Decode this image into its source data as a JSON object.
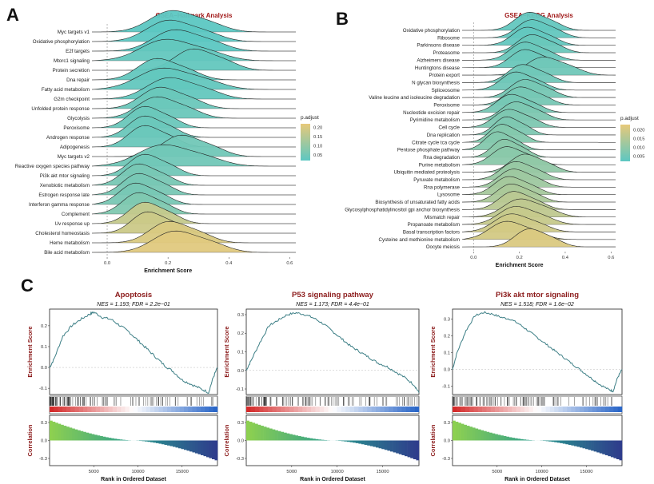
{
  "panels": {
    "A": "A",
    "B": "B",
    "C": "C"
  },
  "colors": {
    "low_padj": "#5cc7c2",
    "high_padj": "#e7c97a",
    "title_red": "#a01818",
    "curve": "#3d7f86"
  },
  "chart_data": [
    {
      "type": "ridgeline",
      "title": "GSEA−Hallmark Analysis",
      "xlabel": "Enrichment Score",
      "xlim": [
        -0.05,
        0.62
      ],
      "xticks": [
        "0.0",
        "0.2",
        "0.4",
        "0.6"
      ],
      "xtick_values": [
        0.0,
        0.2,
        0.4,
        0.6
      ],
      "legend": {
        "title": "p.adjust",
        "labels": [
          "0.20",
          "0.15",
          "0.10",
          "0.05"
        ],
        "values": [
          0.2,
          0.15,
          0.1,
          0.05
        ],
        "range": [
          0.02,
          0.22
        ]
      },
      "categories": [
        "Myc targets v1",
        "Oxidative phosphorylation",
        "E2f targets",
        "Mtorc1 signaling",
        "Protein secretion",
        "Dna repair",
        "Fatty acid metabolism",
        "G2m checkpoint",
        "Unfolded protein response",
        "Glycolysis",
        "Peroxisome",
        "Androgen response",
        "Adipogenesis",
        "Myc targets v2",
        "Reactive oxygen species pathway",
        "Pi3k akt mtor signaling",
        "Xenobiotic metabolism",
        "Estrogen response late",
        "Interferon gamma response",
        "Complement",
        "Uv response up",
        "Cholesterol homeostasis",
        "Heme metabolism",
        "Bile acid metabolism"
      ],
      "peaks": [
        0.21,
        0.2,
        0.22,
        0.19,
        0.28,
        0.16,
        0.18,
        0.2,
        0.17,
        0.16,
        0.12,
        0.12,
        0.12,
        0.24,
        0.18,
        0.12,
        0.1,
        0.1,
        0.09,
        0.1,
        0.12,
        0.13,
        0.2,
        0.22
      ],
      "spreads": [
        0.07,
        0.07,
        0.07,
        0.08,
        0.06,
        0.06,
        0.08,
        0.07,
        0.06,
        0.06,
        0.05,
        0.05,
        0.05,
        0.06,
        0.08,
        0.05,
        0.05,
        0.05,
        0.05,
        0.05,
        0.05,
        0.05,
        0.06,
        0.07
      ],
      "p_adjust": [
        0.02,
        0.02,
        0.02,
        0.03,
        0.03,
        0.03,
        0.03,
        0.03,
        0.04,
        0.04,
        0.04,
        0.04,
        0.04,
        0.05,
        0.05,
        0.05,
        0.06,
        0.06,
        0.06,
        0.07,
        0.17,
        0.18,
        0.2,
        0.21
      ]
    },
    {
      "type": "ridgeline",
      "title": "GSEA−KEGG Analysis",
      "xlabel": "Enrichment Score",
      "xlim": [
        -0.05,
        0.62
      ],
      "xticks": [
        "0.0",
        "0.2",
        "0.4",
        "0.6"
      ],
      "xtick_values": [
        0.0,
        0.2,
        0.4,
        0.6
      ],
      "legend": {
        "title": "p.adjust",
        "labels": [
          "0.020",
          "0.015",
          "0.010",
          "0.005"
        ],
        "values": [
          0.02,
          0.015,
          0.01,
          0.005
        ],
        "range": [
          0.002,
          0.023
        ]
      },
      "categories": [
        "Oxidative phosphorylation",
        "Ribosome",
        "Parkinsons disease",
        "Proteasome",
        "Alzheimers disease",
        "Huntingtons disease",
        "Protein export",
        "N glycan biosynthesis",
        "Spliceosome",
        "Valine leucine and isoleucine degradation",
        "Peroxisome",
        "Nucleotide excision repair",
        "Pyrimidine metabolism",
        "Cell cycle",
        "Dna replication",
        "Citrate cycle tca cycle",
        "Pentose phosphate pathway",
        "Rna degradation",
        "Purine metabolism",
        "Ubiquitin mediated proteolysis",
        "Pyruvate metabolism",
        "Rna polymerase",
        "Lysosome",
        "Biosynthesis of unsaturated fatty acids",
        "Glycosylphosphatidylinositol gpi anchor biosynthesis",
        "Mismatch repair",
        "Propanoate metabolism",
        "Basal transcription factors",
        "Cysteine and methionine metabolism",
        "Oocyte meiosis"
      ],
      "peaks": [
        0.24,
        0.25,
        0.23,
        0.25,
        0.22,
        0.22,
        0.3,
        0.21,
        0.18,
        0.22,
        0.2,
        0.16,
        0.18,
        0.15,
        0.14,
        0.12,
        0.1,
        0.13,
        0.14,
        0.22,
        0.18,
        0.17,
        0.15,
        0.16,
        0.17,
        0.2,
        0.18,
        0.16,
        0.14,
        0.24
      ],
      "spreads": [
        0.06,
        0.06,
        0.06,
        0.06,
        0.06,
        0.06,
        0.07,
        0.06,
        0.06,
        0.06,
        0.06,
        0.06,
        0.06,
        0.06,
        0.05,
        0.05,
        0.05,
        0.05,
        0.06,
        0.06,
        0.06,
        0.06,
        0.06,
        0.06,
        0.06,
        0.07,
        0.07,
        0.07,
        0.07,
        0.06
      ],
      "p_adjust": [
        0.003,
        0.003,
        0.003,
        0.004,
        0.004,
        0.004,
        0.005,
        0.005,
        0.005,
        0.006,
        0.006,
        0.006,
        0.007,
        0.007,
        0.007,
        0.008,
        0.008,
        0.009,
        0.009,
        0.01,
        0.011,
        0.012,
        0.013,
        0.014,
        0.016,
        0.017,
        0.018,
        0.019,
        0.02,
        0.021
      ]
    },
    {
      "type": "line",
      "title": "Apoptosis",
      "subtitle": "NES = 1.193; FDR = 2.2e−01",
      "ylabel": "Enrichment Score",
      "ylabel2": "Correlation",
      "xlabel": "Rank in Ordered Dataset",
      "xlim": [
        0,
        19000
      ],
      "xticks": [
        "5000",
        "10000",
        "15000"
      ],
      "xtick_values": [
        5000,
        10000,
        15000
      ],
      "ylim": [
        -0.13,
        0.28
      ],
      "yticks": [
        "0.2",
        "0.1",
        "0.0",
        "-0.1"
      ],
      "ytick_values": [
        0.2,
        0.1,
        0.0,
        -0.1
      ],
      "corr_ylim": [
        -0.42,
        0.42
      ],
      "corr_yticks": [
        "0.3",
        "0.0",
        "-0.3"
      ],
      "corr_ytick_values": [
        0.3,
        0.0,
        -0.3
      ],
      "x": [
        0,
        500,
        1500,
        2500,
        3500,
        4500,
        5000,
        6000,
        7000,
        8000,
        9000,
        10000,
        11000,
        12000,
        13000,
        14000,
        15000,
        16000,
        17000,
        18000,
        18500,
        19000
      ],
      "y": [
        0.0,
        0.04,
        0.15,
        0.2,
        0.23,
        0.255,
        0.265,
        0.24,
        0.23,
        0.2,
        0.17,
        0.13,
        0.09,
        0.05,
        0.01,
        -0.02,
        -0.06,
        -0.08,
        -0.1,
        -0.12,
        -0.05,
        0.0
      ]
    },
    {
      "type": "line",
      "title": "P53 signaling pathway",
      "subtitle": "NES = 1.173; FDR = 4.4e−01",
      "ylabel": "Enrichment Score",
      "ylabel2": "Correlation",
      "xlabel": "Rank in Ordered Dataset",
      "xlim": [
        0,
        19000
      ],
      "xticks": [
        "5000",
        "10000",
        "15000"
      ],
      "xtick_values": [
        5000,
        10000,
        15000
      ],
      "ylim": [
        -0.13,
        0.33
      ],
      "yticks": [
        "0.3",
        "0.2",
        "0.1",
        "0.0",
        "-0.1"
      ],
      "ytick_values": [
        0.3,
        0.2,
        0.1,
        0.0,
        -0.1
      ],
      "corr_ylim": [
        -0.42,
        0.42
      ],
      "corr_yticks": [
        "0.3",
        "0.0",
        "-0.3"
      ],
      "corr_ytick_values": [
        0.3,
        0.0,
        -0.3
      ],
      "x": [
        0,
        500,
        1500,
        2500,
        3500,
        4500,
        5500,
        6500,
        7500,
        8500,
        9500,
        10500,
        11500,
        12500,
        13500,
        14500,
        15500,
        16500,
        17500,
        18500,
        19000
      ],
      "y": [
        0.0,
        0.05,
        0.15,
        0.24,
        0.27,
        0.3,
        0.31,
        0.3,
        0.28,
        0.25,
        0.21,
        0.17,
        0.13,
        0.1,
        0.07,
        0.04,
        0.02,
        -0.01,
        -0.04,
        -0.08,
        -0.12
      ]
    },
    {
      "type": "line",
      "title": "Pi3k akt mtor signaling",
      "subtitle": "NES = 1.518; FDR = 1.6e−02",
      "ylabel": "Enrichment Score",
      "ylabel2": "Correlation",
      "xlabel": "Rank in Ordered Dataset",
      "xlim": [
        0,
        19000
      ],
      "xticks": [
        "5000",
        "10000",
        "15000"
      ],
      "xtick_values": [
        5000,
        10000,
        15000
      ],
      "ylim": [
        -0.15,
        0.36
      ],
      "yticks": [
        "0.3",
        "0.2",
        "0.1",
        "0.0",
        "-0.1"
      ],
      "ytick_values": [
        0.3,
        0.2,
        0.1,
        0.0,
        -0.1
      ],
      "corr_ylim": [
        -0.42,
        0.42
      ],
      "corr_yticks": [
        "0.3",
        "0.0",
        "-0.3"
      ],
      "corr_ytick_values": [
        0.3,
        0.0,
        -0.3
      ],
      "x": [
        0,
        500,
        1500,
        2500,
        3500,
        4500,
        5500,
        6500,
        7500,
        8500,
        9500,
        10500,
        11500,
        12500,
        13500,
        14500,
        15500,
        16500,
        17500,
        18000,
        18500,
        19000
      ],
      "y": [
        0.0,
        0.1,
        0.23,
        0.32,
        0.34,
        0.33,
        0.31,
        0.3,
        0.27,
        0.23,
        0.19,
        0.15,
        0.11,
        0.07,
        0.03,
        -0.01,
        -0.05,
        -0.09,
        -0.12,
        -0.13,
        -0.05,
        0.0
      ]
    }
  ]
}
